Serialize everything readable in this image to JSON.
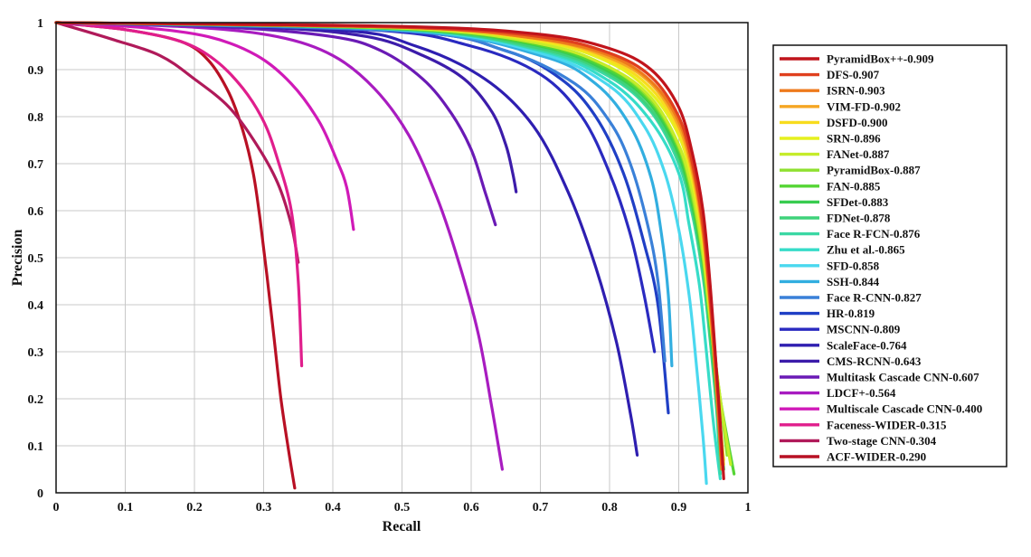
{
  "chart_data": {
    "type": "line",
    "xlabel": "Recall",
    "ylabel": "Precision",
    "xlim": [
      0,
      1
    ],
    "ylim": [
      0,
      1
    ],
    "xticks": [
      "0",
      "0.1",
      "0.2",
      "0.3",
      "0.4",
      "0.5",
      "0.6",
      "0.7",
      "0.8",
      "0.9",
      "1"
    ],
    "yticks": [
      "0",
      "0.1",
      "0.2",
      "0.3",
      "0.4",
      "0.5",
      "0.6",
      "0.7",
      "0.8",
      "0.9",
      "1"
    ],
    "grid": true,
    "legend_position": "right",
    "series": [
      {
        "name": "PyramidBox++-0.909",
        "color": "#c0141c",
        "points": [
          [
            0,
            1
          ],
          [
            0.5,
            0.992
          ],
          [
            0.7,
            0.975
          ],
          [
            0.8,
            0.945
          ],
          [
            0.86,
            0.9
          ],
          [
            0.9,
            0.82
          ],
          [
            0.92,
            0.72
          ],
          [
            0.935,
            0.6
          ],
          [
            0.945,
            0.45
          ],
          [
            0.955,
            0.25
          ],
          [
            0.96,
            0.15
          ],
          [
            0.965,
            0.03
          ]
        ]
      },
      {
        "name": "DFS-0.907",
        "color": "#e0401e",
        "points": [
          [
            0,
            1
          ],
          [
            0.5,
            0.99
          ],
          [
            0.7,
            0.97
          ],
          [
            0.8,
            0.935
          ],
          [
            0.86,
            0.885
          ],
          [
            0.9,
            0.8
          ],
          [
            0.92,
            0.7
          ],
          [
            0.935,
            0.57
          ],
          [
            0.945,
            0.42
          ],
          [
            0.955,
            0.25
          ],
          [
            0.96,
            0.12
          ],
          [
            0.963,
            0.06
          ]
        ]
      },
      {
        "name": "ISRN-0.903",
        "color": "#ee7a1c",
        "points": [
          [
            0,
            1
          ],
          [
            0.5,
            0.99
          ],
          [
            0.7,
            0.965
          ],
          [
            0.8,
            0.93
          ],
          [
            0.86,
            0.875
          ],
          [
            0.9,
            0.79
          ],
          [
            0.92,
            0.69
          ],
          [
            0.935,
            0.56
          ],
          [
            0.945,
            0.41
          ],
          [
            0.953,
            0.25
          ],
          [
            0.96,
            0.1
          ],
          [
            0.962,
            0.05
          ]
        ]
      },
      {
        "name": "VIM-FD-0.902",
        "color": "#f5a623",
        "points": [
          [
            0,
            1
          ],
          [
            0.5,
            0.99
          ],
          [
            0.7,
            0.965
          ],
          [
            0.8,
            0.925
          ],
          [
            0.86,
            0.87
          ],
          [
            0.9,
            0.78
          ],
          [
            0.92,
            0.68
          ],
          [
            0.935,
            0.55
          ],
          [
            0.945,
            0.4
          ],
          [
            0.955,
            0.22
          ],
          [
            0.962,
            0.08
          ]
        ]
      },
      {
        "name": "DSFD-0.900",
        "color": "#f7dc1e",
        "points": [
          [
            0,
            1
          ],
          [
            0.5,
            0.99
          ],
          [
            0.7,
            0.962
          ],
          [
            0.8,
            0.92
          ],
          [
            0.86,
            0.86
          ],
          [
            0.9,
            0.77
          ],
          [
            0.92,
            0.67
          ],
          [
            0.935,
            0.54
          ],
          [
            0.945,
            0.4
          ],
          [
            0.955,
            0.22
          ],
          [
            0.965,
            0.06
          ]
        ]
      },
      {
        "name": "SRN-0.896",
        "color": "#e6f01e",
        "points": [
          [
            0,
            1
          ],
          [
            0.5,
            0.99
          ],
          [
            0.7,
            0.96
          ],
          [
            0.8,
            0.915
          ],
          [
            0.86,
            0.85
          ],
          [
            0.9,
            0.76
          ],
          [
            0.92,
            0.66
          ],
          [
            0.935,
            0.53
          ],
          [
            0.945,
            0.39
          ],
          [
            0.955,
            0.22
          ],
          [
            0.965,
            0.07
          ]
        ]
      },
      {
        "name": "FANet-0.887",
        "color": "#c5ec2a",
        "points": [
          [
            0,
            1
          ],
          [
            0.5,
            0.988
          ],
          [
            0.7,
            0.955
          ],
          [
            0.8,
            0.905
          ],
          [
            0.86,
            0.84
          ],
          [
            0.9,
            0.74
          ],
          [
            0.92,
            0.64
          ],
          [
            0.935,
            0.51
          ],
          [
            0.945,
            0.38
          ],
          [
            0.96,
            0.2
          ],
          [
            0.975,
            0.06
          ]
        ]
      },
      {
        "name": "PyramidBox-0.887",
        "color": "#8fe030",
        "points": [
          [
            0,
            1
          ],
          [
            0.5,
            0.988
          ],
          [
            0.7,
            0.955
          ],
          [
            0.8,
            0.905
          ],
          [
            0.86,
            0.835
          ],
          [
            0.9,
            0.735
          ],
          [
            0.92,
            0.63
          ],
          [
            0.935,
            0.5
          ],
          [
            0.945,
            0.37
          ],
          [
            0.96,
            0.2
          ],
          [
            0.97,
            0.08
          ]
        ]
      },
      {
        "name": "FAN-0.885",
        "color": "#55d535",
        "points": [
          [
            0,
            1
          ],
          [
            0.5,
            0.987
          ],
          [
            0.7,
            0.952
          ],
          [
            0.8,
            0.9
          ],
          [
            0.86,
            0.83
          ],
          [
            0.9,
            0.73
          ],
          [
            0.92,
            0.62
          ],
          [
            0.935,
            0.5
          ],
          [
            0.945,
            0.37
          ],
          [
            0.96,
            0.2
          ],
          [
            0.98,
            0.04
          ]
        ]
      },
      {
        "name": "SFDet-0.883",
        "color": "#38cc50",
        "points": [
          [
            0,
            1
          ],
          [
            0.5,
            0.987
          ],
          [
            0.7,
            0.95
          ],
          [
            0.8,
            0.895
          ],
          [
            0.86,
            0.825
          ],
          [
            0.9,
            0.72
          ],
          [
            0.92,
            0.61
          ],
          [
            0.935,
            0.49
          ],
          [
            0.945,
            0.36
          ],
          [
            0.955,
            0.2
          ],
          [
            0.965,
            0.05
          ]
        ]
      },
      {
        "name": "FDNet-0.878",
        "color": "#3fd27a",
        "points": [
          [
            0,
            1
          ],
          [
            0.5,
            0.986
          ],
          [
            0.7,
            0.945
          ],
          [
            0.8,
            0.89
          ],
          [
            0.86,
            0.815
          ],
          [
            0.9,
            0.71
          ],
          [
            0.92,
            0.6
          ],
          [
            0.935,
            0.47
          ],
          [
            0.945,
            0.34
          ],
          [
            0.955,
            0.18
          ],
          [
            0.96,
            0.08
          ]
        ]
      },
      {
        "name": "Face R-FCN-0.876",
        "color": "#3bd8a4",
        "points": [
          [
            0,
            1
          ],
          [
            0.5,
            0.986
          ],
          [
            0.7,
            0.942
          ],
          [
            0.8,
            0.885
          ],
          [
            0.86,
            0.81
          ],
          [
            0.9,
            0.7
          ],
          [
            0.92,
            0.59
          ],
          [
            0.935,
            0.46
          ],
          [
            0.945,
            0.33
          ],
          [
            0.955,
            0.17
          ],
          [
            0.96,
            0.04
          ]
        ]
      },
      {
        "name": "Zhu et al.-0.865",
        "color": "#36dcc8",
        "points": [
          [
            0,
            1
          ],
          [
            0.5,
            0.985
          ],
          [
            0.7,
            0.94
          ],
          [
            0.8,
            0.875
          ],
          [
            0.86,
            0.79
          ],
          [
            0.9,
            0.68
          ],
          [
            0.915,
            0.57
          ],
          [
            0.93,
            0.44
          ],
          [
            0.94,
            0.3
          ],
          [
            0.95,
            0.15
          ],
          [
            0.96,
            0.03
          ]
        ]
      },
      {
        "name": "SFD-0.858",
        "color": "#4ad8ef",
        "points": [
          [
            0,
            1
          ],
          [
            0.5,
            0.985
          ],
          [
            0.7,
            0.935
          ],
          [
            0.8,
            0.865
          ],
          [
            0.85,
            0.78
          ],
          [
            0.88,
            0.68
          ],
          [
            0.9,
            0.56
          ],
          [
            0.915,
            0.42
          ],
          [
            0.925,
            0.28
          ],
          [
            0.935,
            0.12
          ],
          [
            0.94,
            0.02
          ]
        ]
      },
      {
        "name": "SSH-0.844",
        "color": "#32aee0",
        "points": [
          [
            0,
            1
          ],
          [
            0.5,
            0.984
          ],
          [
            0.7,
            0.93
          ],
          [
            0.78,
            0.87
          ],
          [
            0.83,
            0.78
          ],
          [
            0.86,
            0.67
          ],
          [
            0.875,
            0.55
          ],
          [
            0.885,
            0.42
          ],
          [
            0.89,
            0.27
          ]
        ]
      },
      {
        "name": "Face R-CNN-0.827",
        "color": "#3a80d8",
        "points": [
          [
            0,
            1
          ],
          [
            0.5,
            0.982
          ],
          [
            0.65,
            0.94
          ],
          [
            0.75,
            0.87
          ],
          [
            0.8,
            0.79
          ],
          [
            0.83,
            0.7
          ],
          [
            0.855,
            0.57
          ],
          [
            0.87,
            0.45
          ],
          [
            0.88,
            0.28
          ]
        ]
      },
      {
        "name": "HR-0.819",
        "color": "#1f3fc5",
        "points": [
          [
            0,
            1
          ],
          [
            0.5,
            0.982
          ],
          [
            0.65,
            0.94
          ],
          [
            0.73,
            0.88
          ],
          [
            0.78,
            0.8
          ],
          [
            0.82,
            0.68
          ],
          [
            0.85,
            0.53
          ],
          [
            0.87,
            0.4
          ],
          [
            0.885,
            0.17
          ]
        ]
      },
      {
        "name": "MSCNN-0.809",
        "color": "#2a2ac0",
        "points": [
          [
            0,
            1
          ],
          [
            0.45,
            0.985
          ],
          [
            0.6,
            0.95
          ],
          [
            0.7,
            0.89
          ],
          [
            0.76,
            0.8
          ],
          [
            0.8,
            0.68
          ],
          [
            0.83,
            0.55
          ],
          [
            0.85,
            0.42
          ],
          [
            0.865,
            0.3
          ]
        ]
      },
      {
        "name": "ScaleFace-0.764",
        "color": "#2e1eb0",
        "points": [
          [
            0,
            1
          ],
          [
            0.4,
            0.985
          ],
          [
            0.52,
            0.95
          ],
          [
            0.62,
            0.88
          ],
          [
            0.69,
            0.78
          ],
          [
            0.74,
            0.64
          ],
          [
            0.78,
            0.48
          ],
          [
            0.81,
            0.32
          ],
          [
            0.83,
            0.17
          ],
          [
            0.84,
            0.08
          ]
        ]
      },
      {
        "name": "CMS-RCNN-0.643",
        "color": "#3c1caa",
        "points": [
          [
            0,
            1
          ],
          [
            0.3,
            0.99
          ],
          [
            0.45,
            0.97
          ],
          [
            0.53,
            0.93
          ],
          [
            0.59,
            0.88
          ],
          [
            0.63,
            0.81
          ],
          [
            0.65,
            0.74
          ],
          [
            0.66,
            0.68
          ],
          [
            0.665,
            0.64
          ]
        ]
      },
      {
        "name": "Multitask Cascade CNN-0.607",
        "color": "#6a1ab5",
        "points": [
          [
            0,
            1
          ],
          [
            0.25,
            0.99
          ],
          [
            0.4,
            0.97
          ],
          [
            0.47,
            0.94
          ],
          [
            0.53,
            0.88
          ],
          [
            0.57,
            0.81
          ],
          [
            0.6,
            0.73
          ],
          [
            0.62,
            0.64
          ],
          [
            0.635,
            0.57
          ]
        ]
      },
      {
        "name": "LDCF+-0.564",
        "color": "#a81cc0",
        "points": [
          [
            0,
            1
          ],
          [
            0.2,
            0.99
          ],
          [
            0.32,
            0.97
          ],
          [
            0.4,
            0.93
          ],
          [
            0.46,
            0.86
          ],
          [
            0.51,
            0.76
          ],
          [
            0.55,
            0.63
          ],
          [
            0.58,
            0.5
          ],
          [
            0.61,
            0.34
          ],
          [
            0.63,
            0.18
          ],
          [
            0.645,
            0.05
          ]
        ]
      },
      {
        "name": "Multiscale Cascade CNN-0.400",
        "color": "#d01ab8",
        "points": [
          [
            0,
            1
          ],
          [
            0.12,
            0.99
          ],
          [
            0.22,
            0.97
          ],
          [
            0.29,
            0.93
          ],
          [
            0.34,
            0.87
          ],
          [
            0.38,
            0.79
          ],
          [
            0.405,
            0.71
          ],
          [
            0.42,
            0.65
          ],
          [
            0.43,
            0.56
          ]
        ]
      },
      {
        "name": "Faceness-WIDER-0.315",
        "color": "#e01e8c",
        "points": [
          [
            0,
            1
          ],
          [
            0.1,
            0.985
          ],
          [
            0.18,
            0.96
          ],
          [
            0.23,
            0.92
          ],
          [
            0.27,
            0.86
          ],
          [
            0.3,
            0.79
          ],
          [
            0.32,
            0.71
          ],
          [
            0.34,
            0.6
          ],
          [
            0.35,
            0.45
          ],
          [
            0.355,
            0.27
          ]
        ]
      },
      {
        "name": "Two-stage CNN-0.304",
        "color": "#b01a5a",
        "points": [
          [
            0,
            1
          ],
          [
            0.08,
            0.965
          ],
          [
            0.15,
            0.93
          ],
          [
            0.2,
            0.88
          ],
          [
            0.25,
            0.82
          ],
          [
            0.29,
            0.74
          ],
          [
            0.32,
            0.66
          ],
          [
            0.34,
            0.57
          ],
          [
            0.35,
            0.49
          ]
        ]
      },
      {
        "name": "ACF-WIDER-0.290",
        "color": "#b81024",
        "points": [
          [
            0,
            1
          ],
          [
            0.1,
            0.985
          ],
          [
            0.18,
            0.96
          ],
          [
            0.22,
            0.92
          ],
          [
            0.25,
            0.85
          ],
          [
            0.27,
            0.77
          ],
          [
            0.285,
            0.68
          ],
          [
            0.295,
            0.58
          ],
          [
            0.305,
            0.46
          ],
          [
            0.315,
            0.33
          ],
          [
            0.325,
            0.2
          ],
          [
            0.335,
            0.1
          ],
          [
            0.345,
            0.01
          ]
        ]
      }
    ]
  }
}
